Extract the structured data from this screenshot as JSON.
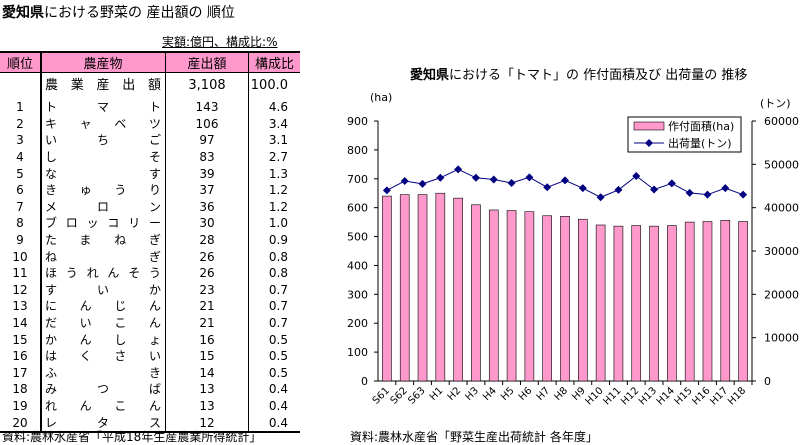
{
  "table": {
    "title_bold": "愛知県",
    "title_rest": "における野菜の 産出額の 順位",
    "unit": "実額:億円、構成比:%",
    "headers": [
      "順位",
      "農産物",
      "産出額",
      "構成比"
    ],
    "total": {
      "label": "農業産出額",
      "value": "3,108",
      "ratio": "100.0"
    },
    "rows": [
      {
        "rank": "1",
        "crop": "トマト",
        "value": "143",
        "ratio": "4.6"
      },
      {
        "rank": "2",
        "crop": "キャベツ",
        "value": "106",
        "ratio": "3.4"
      },
      {
        "rank": "3",
        "crop": "いちご",
        "value": "97",
        "ratio": "3.1"
      },
      {
        "rank": "4",
        "crop": "しそ",
        "value": "83",
        "ratio": "2.7"
      },
      {
        "rank": "5",
        "crop": "なす",
        "value": "39",
        "ratio": "1.3"
      },
      {
        "rank": "6",
        "crop": "きゅうり",
        "value": "37",
        "ratio": "1.2"
      },
      {
        "rank": "7",
        "crop": "メロン",
        "value": "36",
        "ratio": "1.2"
      },
      {
        "rank": "8",
        "crop": "ブロッコリー",
        "value": "30",
        "ratio": "1.0"
      },
      {
        "rank": "9",
        "crop": "たまねぎ",
        "value": "28",
        "ratio": "0.9"
      },
      {
        "rank": "10",
        "crop": "ねぎ",
        "value": "26",
        "ratio": "0.8"
      },
      {
        "rank": "11",
        "crop": "ほうれんそう",
        "value": "26",
        "ratio": "0.8"
      },
      {
        "rank": "12",
        "crop": "すいか",
        "value": "23",
        "ratio": "0.7"
      },
      {
        "rank": "13",
        "crop": "にんじん",
        "value": "21",
        "ratio": "0.7"
      },
      {
        "rank": "14",
        "crop": "だいこん",
        "value": "21",
        "ratio": "0.7"
      },
      {
        "rank": "15",
        "crop": "かんしょ",
        "value": "16",
        "ratio": "0.5"
      },
      {
        "rank": "16",
        "crop": "はくさい",
        "value": "15",
        "ratio": "0.5"
      },
      {
        "rank": "17",
        "crop": "ふき",
        "value": "14",
        "ratio": "0.5"
      },
      {
        "rank": "18",
        "crop": "みつば",
        "value": "13",
        "ratio": "0.4"
      },
      {
        "rank": "19",
        "crop": "れんこん",
        "value": "13",
        "ratio": "0.4"
      },
      {
        "rank": "20",
        "crop": "レタス",
        "value": "12",
        "ratio": "0.4"
      }
    ],
    "source": "資料:農林水産省「平成18年生産農業所得統計」"
  },
  "chart_data": {
    "type": "bar+line",
    "title_bold": "愛知県",
    "title_rest": "における「トマト」の 作付面積及び 出荷量の 推移",
    "categories": [
      "S61",
      "S62",
      "S63",
      "H1",
      "H2",
      "H3",
      "H4",
      "H5",
      "H6",
      "H7",
      "H8",
      "H9",
      "H10",
      "H11",
      "H12",
      "H13",
      "H14",
      "H15",
      "H16",
      "H17",
      "H18"
    ],
    "series": [
      {
        "name": "作付面積(ha)",
        "axis": "left",
        "type": "bar",
        "color": "#ff99cc",
        "values": [
          640,
          645,
          645,
          650,
          633,
          610,
          592,
          590,
          586,
          572,
          570,
          560,
          540,
          536,
          538,
          536,
          538,
          550,
          552,
          556,
          552
        ]
      },
      {
        "name": "出荷量(トン)",
        "axis": "right",
        "type": "line",
        "color": "#000080",
        "values": [
          44000,
          46150,
          45500,
          46900,
          48850,
          46900,
          46500,
          45700,
          47000,
          44700,
          46300,
          44500,
          42400,
          44100,
          47300,
          44200,
          45600,
          43400,
          43000,
          44500,
          43000
        ]
      }
    ],
    "left_axis": {
      "unit": "(ha)",
      "range": [
        0,
        900
      ],
      "ticks": [
        "0",
        "100",
        "200",
        "300",
        "400",
        "500",
        "600",
        "700",
        "800",
        "900"
      ]
    },
    "right_axis": {
      "unit": "(トン)",
      "range": [
        0,
        60000
      ],
      "ticks": [
        "0",
        "10000",
        "20000",
        "30000",
        "40000",
        "50000",
        "60000"
      ]
    },
    "legend": "top-right",
    "source": "資料:農林水産省「野菜生産出荷統計  各年度」"
  }
}
